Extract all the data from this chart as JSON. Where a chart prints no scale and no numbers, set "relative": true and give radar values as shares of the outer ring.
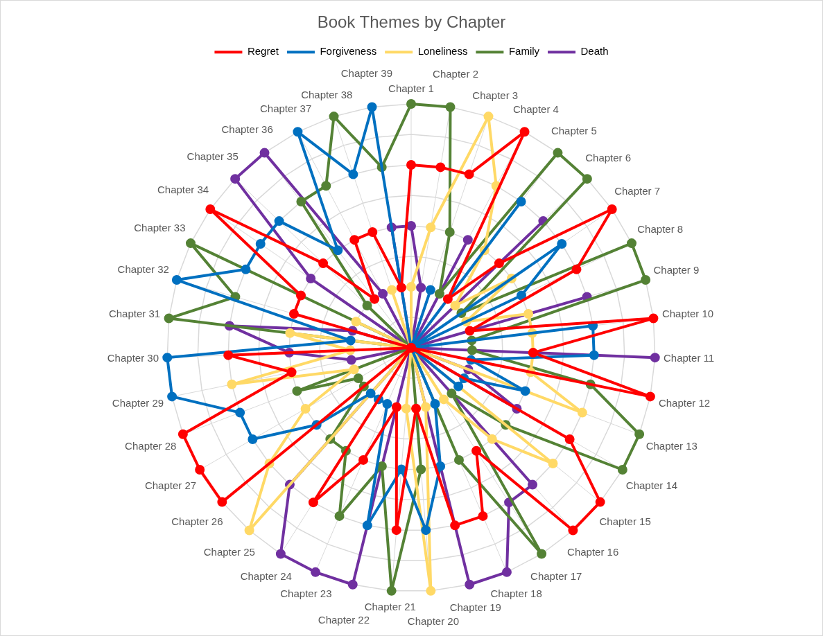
{
  "chart_data": {
    "type": "radar",
    "title": "Book Themes by Chapter",
    "relative": true,
    "grid": true,
    "legend": "top",
    "marker": "circle",
    "categories": [
      "Chapter 1",
      "Chapter 2",
      "Chapter 3",
      "Chapter 4",
      "Chapter 5",
      "Chapter 6",
      "Chapter 7",
      "Chapter 8",
      "Chapter 9",
      "Chapter 10",
      "Chapter 11",
      "Chapter 12",
      "Chapter 13",
      "Chapter 14",
      "Chapter 15",
      "Chapter 16",
      "Chapter 17",
      "Chapter 18",
      "Chapter 19",
      "Chapter 20",
      "Chapter 21",
      "Chapter 22",
      "Chapter 23",
      "Chapter 24",
      "Chapter 25",
      "Chapter 26",
      "Chapter 27",
      "Chapter 28",
      "Chapter 29",
      "Chapter 30",
      "Chapter 31",
      "Chapter 32",
      "Chapter 33",
      "Chapter 34",
      "Chapter 35",
      "Chapter 36",
      "Chapter 37",
      "Chapter 38",
      "Chapter 39"
    ],
    "series": [
      {
        "name": "Regret",
        "color": "#ff0000",
        "values": [
          0.75,
          0.75,
          0.75,
          1,
          0.25,
          0.5,
          1,
          0.75,
          0.25,
          1,
          0.5,
          1,
          0,
          0.75,
          1,
          1,
          0.5,
          0.75,
          0.75,
          0.25,
          0.75,
          0.25,
          0.5,
          0.75,
          0,
          1,
          1,
          1,
          0.5,
          0.75,
          0,
          0.5,
          0.5,
          1,
          0.5,
          0.25,
          0.5,
          0.5,
          0.25
        ]
      },
      {
        "name": "Forgiveness",
        "color": "#0070c0",
        "values": [
          0,
          0,
          0.25,
          0,
          0.75,
          0,
          0.75,
          0.5,
          0,
          0.75,
          0.75,
          0.25,
          0.5,
          0.25,
          0.25,
          0,
          0,
          0.25,
          0.5,
          0.75,
          0.5,
          0.75,
          0.25,
          0.25,
          0.25,
          0.5,
          0.75,
          0.75,
          1,
          1,
          0.25,
          1,
          0.75,
          0.75,
          0.75,
          0.5,
          1,
          0.75,
          1
        ]
      },
      {
        "name": "Loneliness",
        "color": "#ffd966",
        "values": [
          0.25,
          0.5,
          1,
          0.75,
          0.5,
          0.25,
          0.5,
          0.25,
          0.5,
          0.5,
          0.5,
          0.5,
          0.75,
          0,
          0.75,
          0.5,
          0.25,
          0,
          0.25,
          1,
          0.25,
          0,
          0,
          0,
          1,
          0.75,
          0.5,
          0.25,
          0.75,
          0.25,
          0.5,
          0,
          0.25,
          0,
          0,
          0,
          0,
          0.25,
          0
        ]
      },
      {
        "name": "Family",
        "color": "#548235",
        "values": [
          1,
          1,
          0.5,
          0.25,
          1,
          1,
          0.25,
          1,
          1,
          0.25,
          0.25,
          0.75,
          1,
          1,
          0.5,
          0.25,
          1,
          0.5,
          0,
          0.5,
          1,
          0.5,
          0.75,
          0.5,
          0.5,
          0.25,
          0.25,
          0.5,
          0,
          0,
          1,
          0.75,
          1,
          0,
          0.25,
          0.75,
          0.75,
          1,
          0.75
        ]
      },
      {
        "name": "Death",
        "color": "#7030a0",
        "values": [
          0.5,
          0.25,
          0,
          0.5,
          0,
          0.75,
          0,
          0,
          0.75,
          0,
          1,
          0,
          0.25,
          0.5,
          0,
          0.75,
          0.75,
          1,
          1,
          0,
          0,
          1,
          1,
          1,
          0.75,
          0,
          0,
          0,
          0.25,
          0.5,
          0.75,
          0.25,
          0,
          0.5,
          1,
          1,
          0.25,
          0,
          0.5
        ]
      }
    ]
  }
}
